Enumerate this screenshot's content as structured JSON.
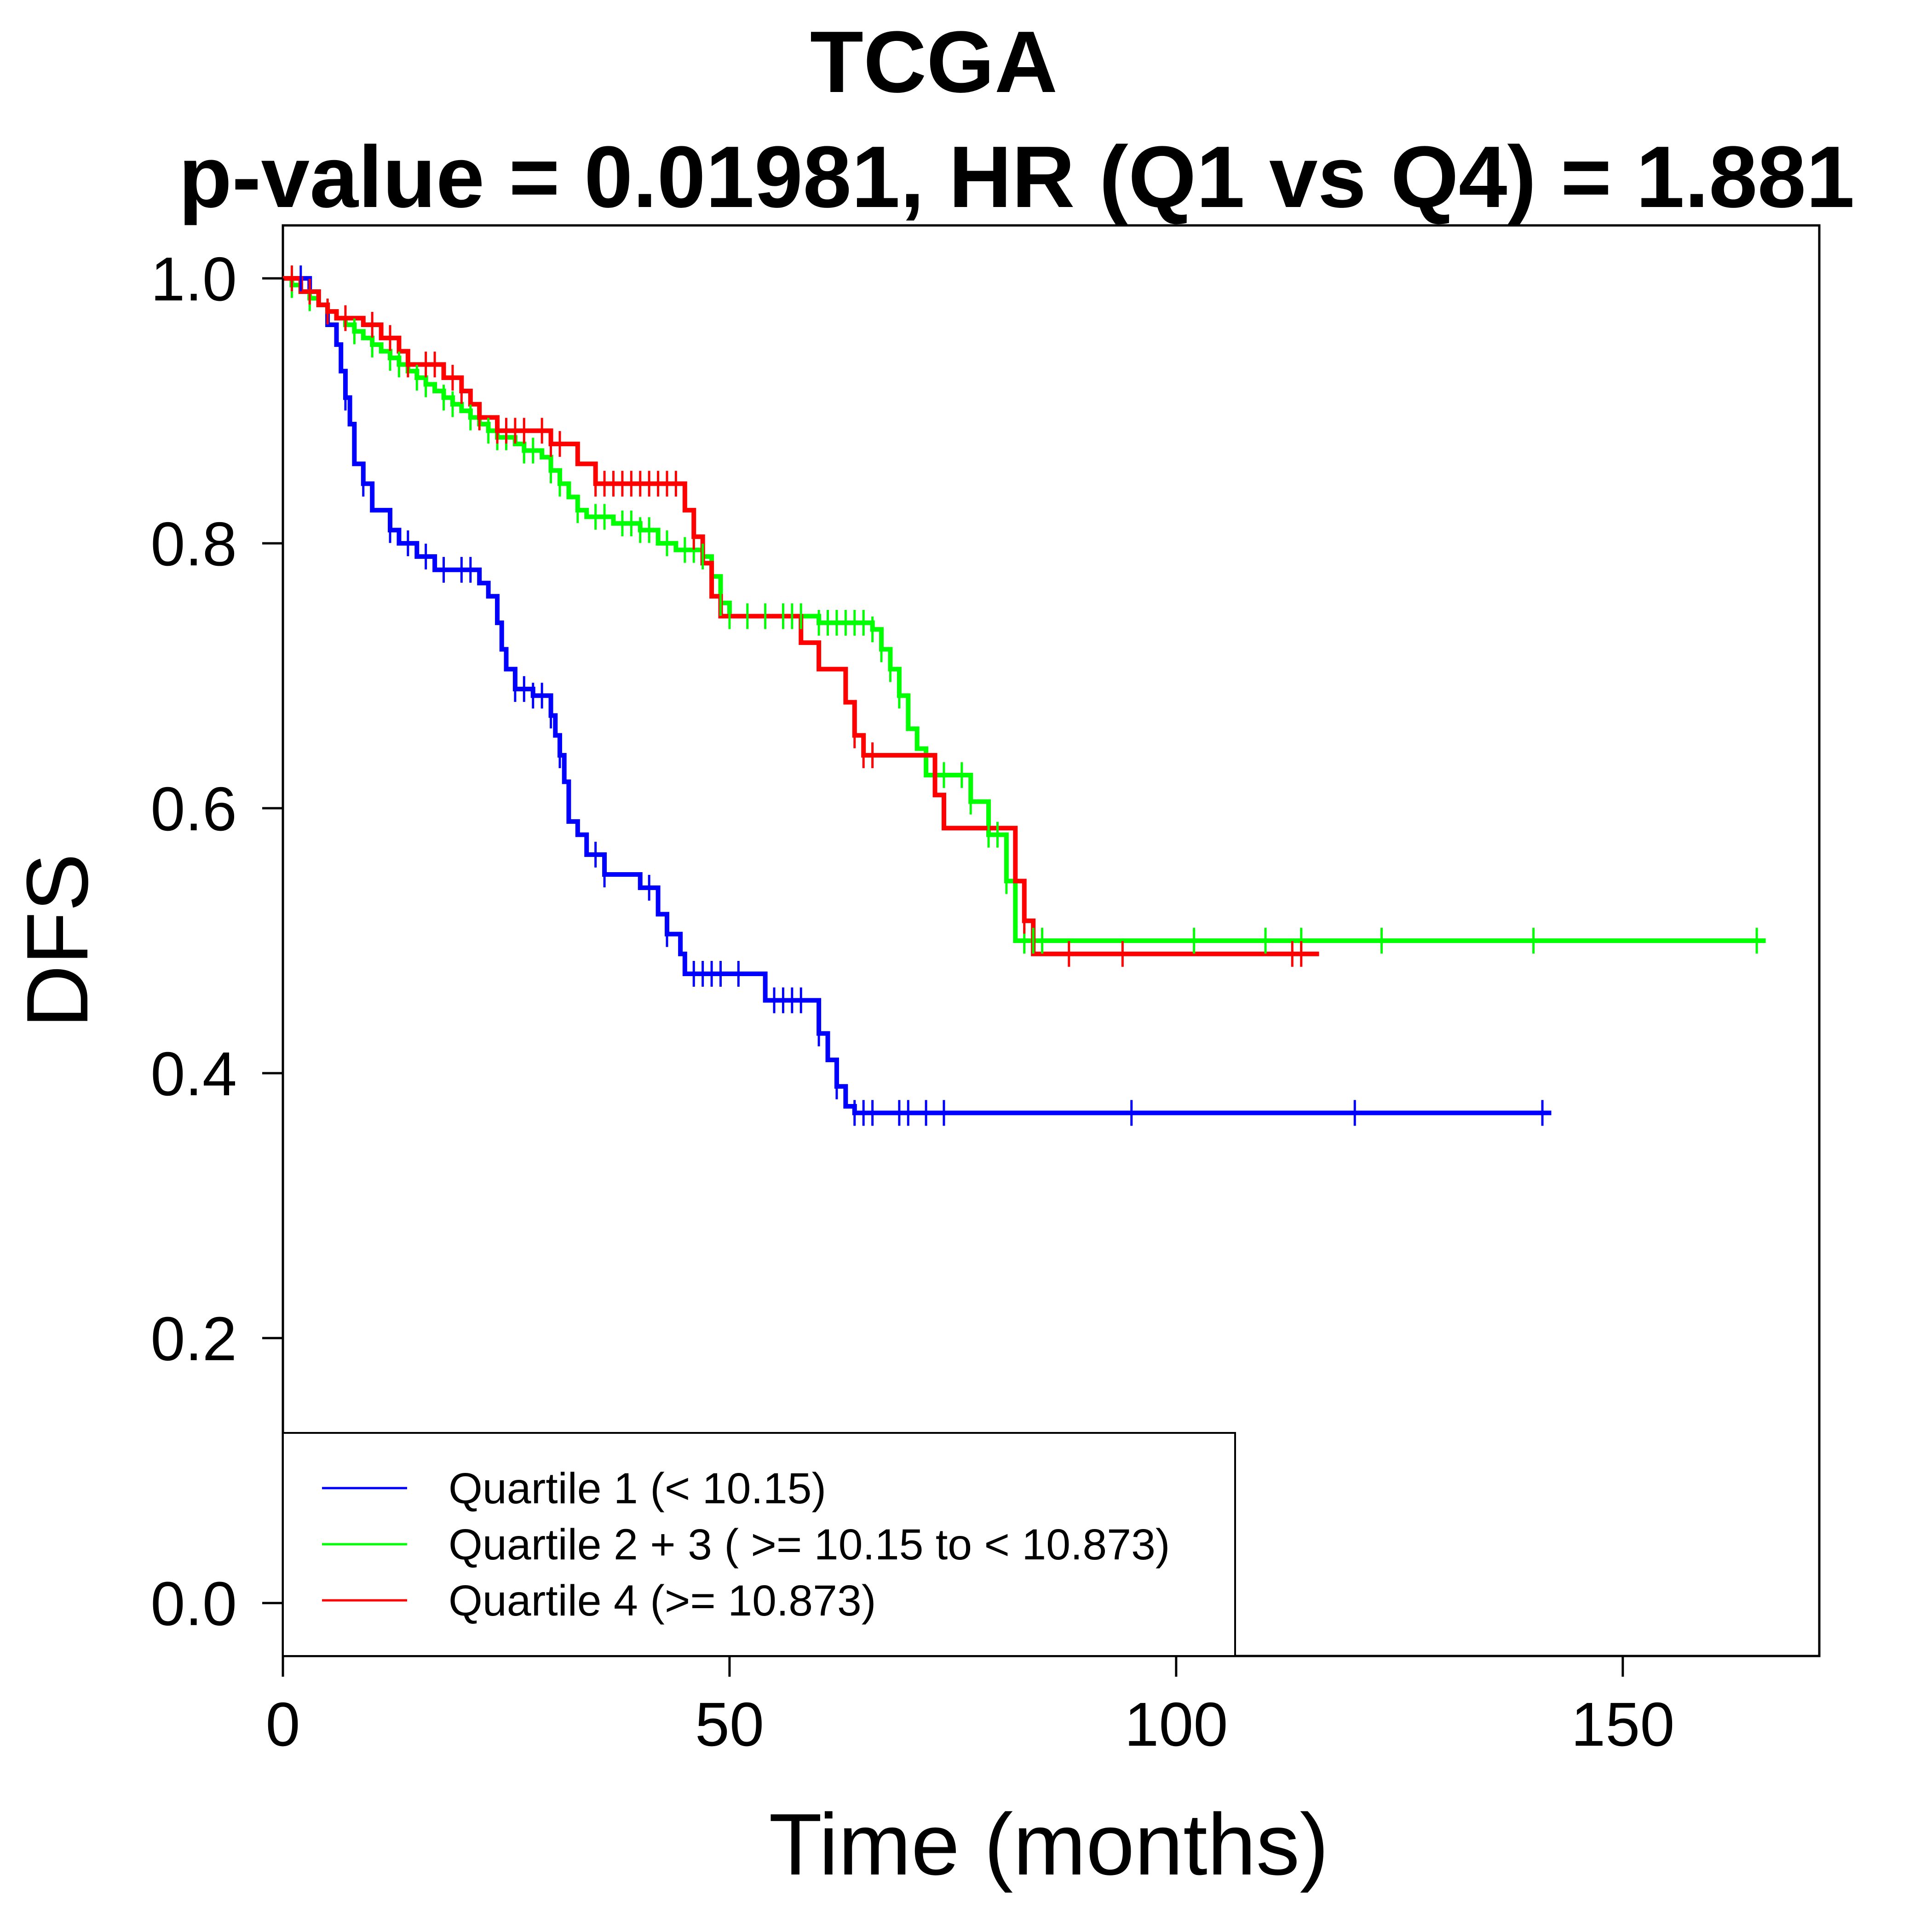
{
  "chart_data": {
    "type": "line",
    "title": "TCGA",
    "subtitle": "p-value = 0.01981, HR (Q1 vs Q4) = 1.881",
    "xlabel": "Time (months)",
    "ylabel": "DFS",
    "xlim": [
      0,
      172
    ],
    "ylim": [
      -0.04,
      1.04
    ],
    "x_ticks": [
      0,
      50,
      100,
      150
    ],
    "x_tick_labels": [
      "0",
      "50",
      "100",
      "150"
    ],
    "y_ticks": [
      0.0,
      0.2,
      0.4,
      0.6,
      0.8,
      1.0
    ],
    "y_tick_labels": [
      "0.0",
      "0.2",
      "0.4",
      "0.6",
      "0.8",
      "1.0"
    ],
    "grid": false,
    "legend_position": "bottom-left",
    "series": [
      {
        "name": "Quartile 1 (< 10.15)",
        "color": "#0000FF",
        "steps": [
          [
            0,
            1.0
          ],
          [
            3,
            0.99
          ],
          [
            4,
            0.98
          ],
          [
            5,
            0.965
          ],
          [
            6,
            0.95
          ],
          [
            6.5,
            0.93
          ],
          [
            7,
            0.91
          ],
          [
            7.5,
            0.89
          ],
          [
            8,
            0.86
          ],
          [
            9,
            0.845
          ],
          [
            10,
            0.825
          ],
          [
            12,
            0.81
          ],
          [
            13,
            0.8
          ],
          [
            15,
            0.79
          ],
          [
            17,
            0.78
          ],
          [
            21,
            0.78
          ],
          [
            22,
            0.77
          ],
          [
            23,
            0.76
          ],
          [
            24,
            0.74
          ],
          [
            24.5,
            0.72
          ],
          [
            25,
            0.705
          ],
          [
            26,
            0.69
          ],
          [
            28,
            0.685
          ],
          [
            30,
            0.67
          ],
          [
            30.5,
            0.655
          ],
          [
            31,
            0.64
          ],
          [
            31.5,
            0.62
          ],
          [
            32,
            0.59
          ],
          [
            33,
            0.58
          ],
          [
            34,
            0.565
          ],
          [
            36,
            0.55
          ],
          [
            40,
            0.54
          ],
          [
            42,
            0.52
          ],
          [
            43,
            0.505
          ],
          [
            44.5,
            0.49
          ],
          [
            45,
            0.475
          ],
          [
            54,
            0.455
          ],
          [
            60,
            0.43
          ],
          [
            61,
            0.41
          ],
          [
            62,
            0.39
          ],
          [
            63,
            0.375
          ],
          [
            64,
            0.37
          ],
          [
            142,
            0.37
          ]
        ],
        "censor_x": [
          2,
          7,
          9,
          12,
          14,
          16,
          18,
          20,
          21,
          26,
          27,
          28,
          29,
          30,
          31,
          35,
          36,
          41,
          43,
          46,
          47,
          48,
          49,
          51,
          55,
          56,
          57,
          58,
          60,
          62,
          64,
          65,
          66,
          69,
          70,
          72,
          74,
          95,
          120,
          141
        ]
      },
      {
        "name": "Quartile 2 + 3 ( >= 10.15 to < 10.873)",
        "color": "#00FF00",
        "steps": [
          [
            0,
            1.0
          ],
          [
            1,
            0.995
          ],
          [
            2,
            0.99
          ],
          [
            3,
            0.985
          ],
          [
            4,
            0.98
          ],
          [
            5,
            0.975
          ],
          [
            6,
            0.97
          ],
          [
            7,
            0.965
          ],
          [
            8,
            0.96
          ],
          [
            9,
            0.955
          ],
          [
            10,
            0.95
          ],
          [
            11,
            0.945
          ],
          [
            12,
            0.94
          ],
          [
            13,
            0.935
          ],
          [
            14,
            0.93
          ],
          [
            15,
            0.925
          ],
          [
            16,
            0.92
          ],
          [
            17,
            0.915
          ],
          [
            18,
            0.91
          ],
          [
            19,
            0.905
          ],
          [
            20,
            0.9
          ],
          [
            21,
            0.895
          ],
          [
            22,
            0.89
          ],
          [
            23,
            0.885
          ],
          [
            24,
            0.88
          ],
          [
            26,
            0.875
          ],
          [
            27,
            0.87
          ],
          [
            29,
            0.865
          ],
          [
            30,
            0.855
          ],
          [
            31,
            0.845
          ],
          [
            32,
            0.835
          ],
          [
            33,
            0.825
          ],
          [
            34,
            0.82
          ],
          [
            37,
            0.815
          ],
          [
            40,
            0.81
          ],
          [
            42,
            0.8
          ],
          [
            44,
            0.795
          ],
          [
            47,
            0.79
          ],
          [
            48,
            0.775
          ],
          [
            49,
            0.755
          ],
          [
            50,
            0.745
          ],
          [
            60,
            0.74
          ],
          [
            66,
            0.735
          ],
          [
            67,
            0.72
          ],
          [
            68,
            0.705
          ],
          [
            69,
            0.685
          ],
          [
            70,
            0.66
          ],
          [
            71,
            0.645
          ],
          [
            72,
            0.625
          ],
          [
            77,
            0.605
          ],
          [
            79,
            0.58
          ],
          [
            81,
            0.545
          ],
          [
            82,
            0.5
          ],
          [
            166,
            0.5
          ]
        ],
        "censor_x": [
          1,
          3,
          5,
          8,
          10,
          12,
          13,
          15,
          16,
          18,
          19,
          21,
          23,
          24,
          25,
          27,
          28,
          30,
          31,
          33,
          35,
          36,
          38,
          39,
          40,
          41,
          43,
          45,
          46,
          47,
          49,
          50,
          52,
          54,
          56,
          57,
          58,
          60,
          61,
          62,
          63,
          64,
          65,
          66,
          67,
          68,
          69,
          74,
          76,
          77,
          79,
          80,
          81,
          83,
          84,
          85,
          102,
          110,
          114,
          123,
          140,
          165
        ]
      },
      {
        "name": "Quartile 4 (>= 10.873)",
        "color": "#FF0000",
        "steps": [
          [
            0,
            1.0
          ],
          [
            2,
            0.99
          ],
          [
            4,
            0.98
          ],
          [
            5,
            0.975
          ],
          [
            6,
            0.97
          ],
          [
            9,
            0.965
          ],
          [
            11,
            0.955
          ],
          [
            13,
            0.945
          ],
          [
            14,
            0.935
          ],
          [
            18,
            0.925
          ],
          [
            20,
            0.915
          ],
          [
            21,
            0.905
          ],
          [
            22,
            0.895
          ],
          [
            24,
            0.885
          ],
          [
            30,
            0.875
          ],
          [
            33,
            0.86
          ],
          [
            35,
            0.845
          ],
          [
            45,
            0.825
          ],
          [
            46,
            0.805
          ],
          [
            47,
            0.785
          ],
          [
            48,
            0.76
          ],
          [
            49,
            0.745
          ],
          [
            58,
            0.725
          ],
          [
            60,
            0.705
          ],
          [
            63,
            0.68
          ],
          [
            64,
            0.655
          ],
          [
            65,
            0.64
          ],
          [
            73,
            0.61
          ],
          [
            74,
            0.585
          ],
          [
            82,
            0.545
          ],
          [
            83,
            0.515
          ],
          [
            84,
            0.49
          ],
          [
            116,
            0.49
          ]
        ],
        "censor_x": [
          1,
          3,
          5,
          7,
          10,
          12,
          14,
          16,
          17,
          19,
          20,
          22,
          24,
          25,
          26,
          27,
          29,
          30,
          31,
          35,
          36,
          37,
          38,
          39,
          40,
          41,
          42,
          43,
          44,
          46,
          64,
          65,
          66,
          83,
          88,
          94,
          113,
          114
        ]
      }
    ]
  }
}
